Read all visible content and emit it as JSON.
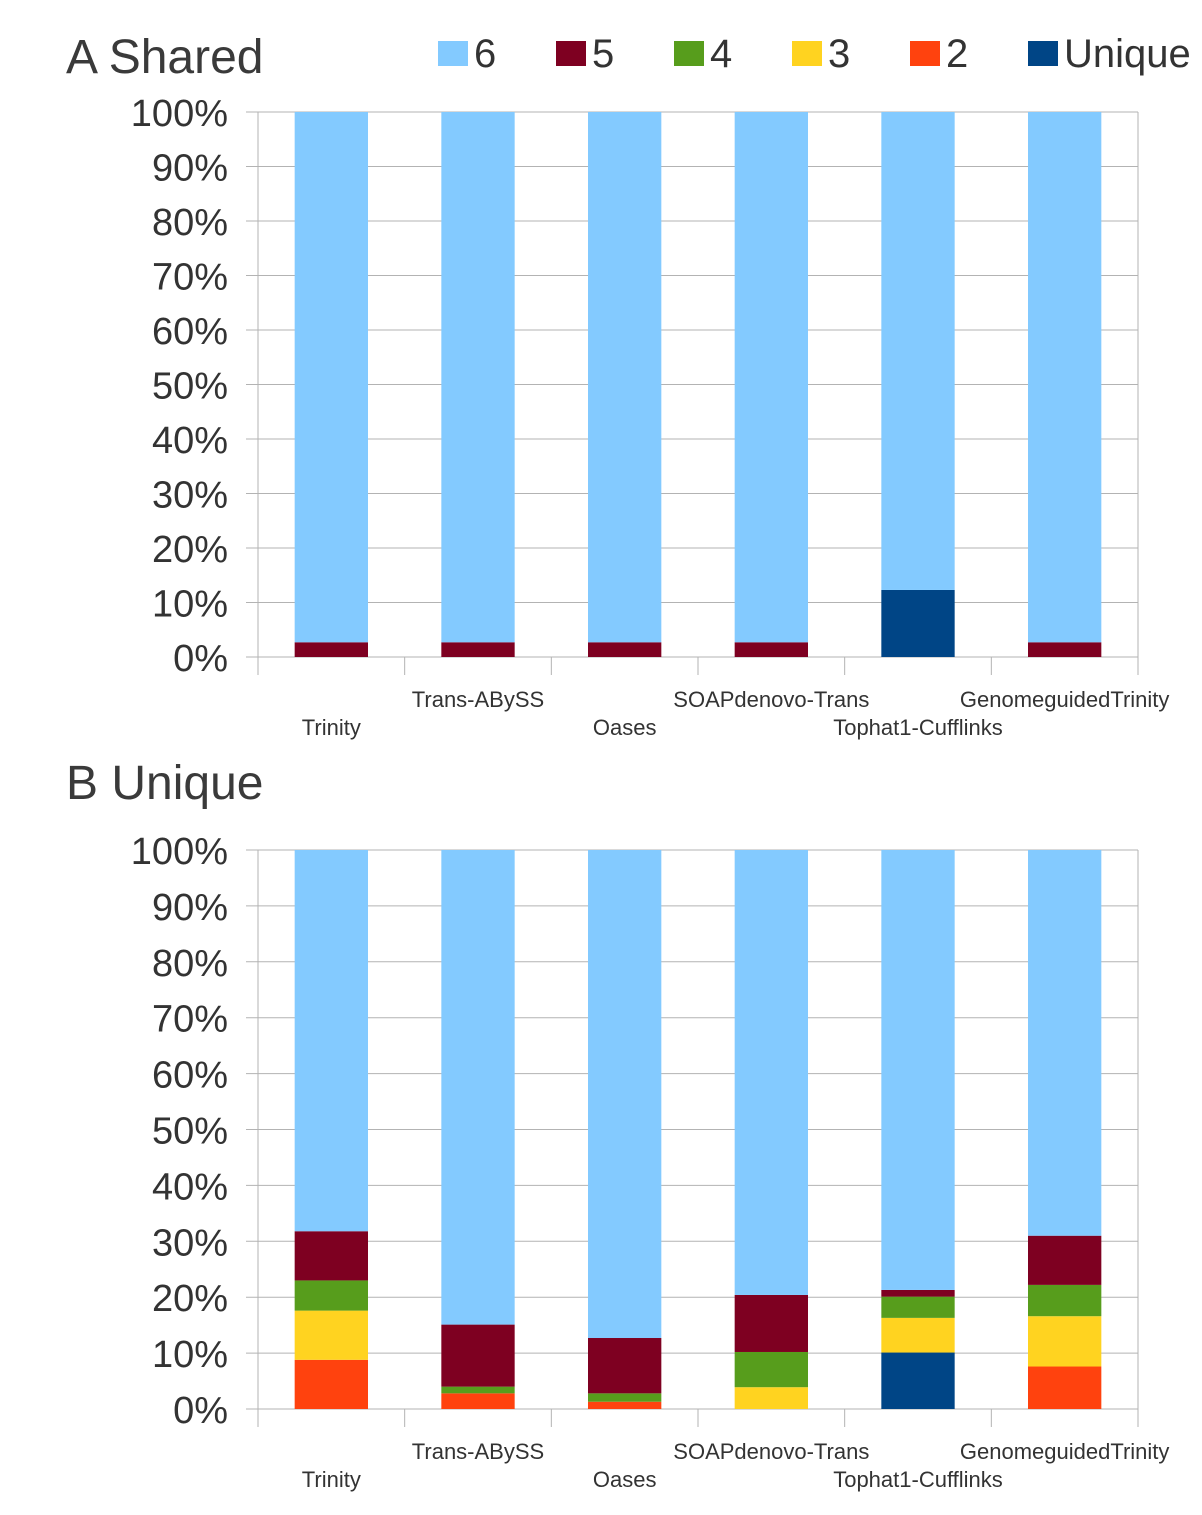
{
  "legend": {
    "series": [
      {
        "key": "6",
        "label": "6",
        "color": "#83caff"
      },
      {
        "key": "5",
        "label": "5",
        "color": "#7e0021"
      },
      {
        "key": "4",
        "label": "4",
        "color": "#579d1c"
      },
      {
        "key": "3",
        "label": "3",
        "color": "#ffd320"
      },
      {
        "key": "2",
        "label": "2",
        "color": "#ff420e"
      },
      {
        "key": "unique",
        "label": "Unique",
        "color": "#004586"
      }
    ]
  },
  "chart_data": [
    {
      "type": "bar",
      "stacked": true,
      "title": "A Shared",
      "categories": [
        "Trinity",
        "Trans-ABySS",
        "Oases",
        "SOAPdenovo-Trans",
        "Tophat1-Cufflinks",
        "GenomeguidedTrinity"
      ],
      "y_ticks": [
        "0%",
        "10%",
        "20%",
        "30%",
        "40%",
        "50%",
        "60%",
        "70%",
        "80%",
        "90%",
        "100%"
      ],
      "ylim": [
        0,
        100
      ],
      "series": [
        {
          "name": "Unique",
          "color": "#004586",
          "values": [
            0,
            0,
            0,
            0,
            12.3,
            0
          ]
        },
        {
          "name": "2",
          "color": "#ff420e",
          "values": [
            0,
            0,
            0,
            0,
            0,
            0
          ]
        },
        {
          "name": "3",
          "color": "#ffd320",
          "values": [
            0,
            0,
            0,
            0,
            0,
            0
          ]
        },
        {
          "name": "4",
          "color": "#579d1c",
          "values": [
            0,
            0,
            0,
            0,
            0,
            0
          ]
        },
        {
          "name": "5",
          "color": "#7e0021",
          "values": [
            2.7,
            2.7,
            2.7,
            2.7,
            0,
            2.7
          ]
        },
        {
          "name": "6",
          "color": "#83caff",
          "values": [
            97.3,
            97.3,
            97.3,
            97.3,
            87.7,
            97.3
          ]
        }
      ]
    },
    {
      "type": "bar",
      "stacked": true,
      "title": "B Unique",
      "categories": [
        "Trinity",
        "Trans-ABySS",
        "Oases",
        "SOAPdenovo-Trans",
        "Tophat1-Cufflinks",
        "GenomeguidedTrinity"
      ],
      "y_ticks": [
        "0%",
        "10%",
        "20%",
        "30%",
        "40%",
        "50%",
        "60%",
        "70%",
        "80%",
        "90%",
        "100%"
      ],
      "ylim": [
        0,
        100
      ],
      "series": [
        {
          "name": "Unique",
          "color": "#004586",
          "values": [
            0,
            0,
            0,
            0,
            10.1,
            0
          ]
        },
        {
          "name": "2",
          "color": "#ff420e",
          "values": [
            8.8,
            2.8,
            1.3,
            0,
            0,
            7.6
          ]
        },
        {
          "name": "3",
          "color": "#ffd320",
          "values": [
            8.8,
            0,
            0,
            3.9,
            6.2,
            9.0
          ]
        },
        {
          "name": "4",
          "color": "#579d1c",
          "values": [
            5.4,
            1.2,
            1.5,
            6.3,
            3.8,
            5.6
          ]
        },
        {
          "name": "5",
          "color": "#7e0021",
          "values": [
            8.8,
            11.1,
            9.9,
            10.2,
            1.2,
            8.8
          ]
        },
        {
          "name": "6",
          "color": "#83caff",
          "values": [
            68.2,
            84.9,
            87.3,
            79.6,
            78.7,
            69.0
          ]
        }
      ]
    }
  ]
}
